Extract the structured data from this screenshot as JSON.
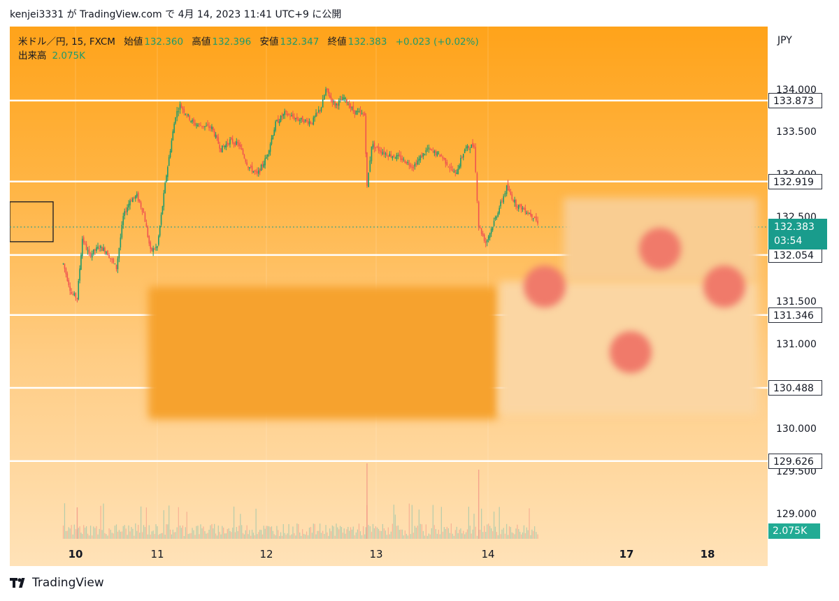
{
  "header": {
    "text": "kenjei3331 が TradingView.com で 4月 14, 2023 11:41 UTC+9 に公開"
  },
  "legend": {
    "symbol": "米ドル／円, 15, FXCM",
    "open_label": "始値",
    "open": "132.360",
    "high_label": "高値",
    "high": "132.396",
    "low_label": "安値",
    "low": "132.347",
    "close_label": "終値",
    "close": "132.383",
    "change": "+0.023 (+0.02%)",
    "volume_label": "出来高",
    "volume": "2.075K"
  },
  "currency": "JPY",
  "price_tag": {
    "price": "132.383",
    "countdown": "03:54"
  },
  "volume_tag": "2.075K",
  "footer": {
    "brand": "TradingView"
  },
  "colors": {
    "up": "#1d9a6c",
    "down": "#ef5350",
    "level_line": "#ffffff",
    "price_tag": "#199c8c"
  },
  "chart_data": {
    "type": "candlestick",
    "symbol": "米ドル／円",
    "interval": "15",
    "ylim": [
      128.8,
      134.35
    ],
    "y_ticks": [
      "129.000",
      "129.500",
      "130.000",
      "131.000",
      "131.500",
      "132.500",
      "133.000",
      "133.500",
      "134.000"
    ],
    "x_ticks": [
      "10",
      "11",
      "12",
      "13",
      "14",
      "17",
      "18"
    ],
    "horizontal_levels": [
      "133.873",
      "132.919",
      "132.054",
      "131.346",
      "130.488",
      "129.626"
    ],
    "current_price": 132.383,
    "close_path": [
      {
        "t": "2023-04-09 21:00",
        "p": 131.95
      },
      {
        "t": "2023-04-09 23:00",
        "p": 131.6
      },
      {
        "t": "2023-04-10 00:30",
        "p": 131.55
      },
      {
        "t": "2023-04-10 02:00",
        "p": 132.25
      },
      {
        "t": "2023-04-10 04:00",
        "p": 132.05
      },
      {
        "t": "2023-04-10 07:00",
        "p": 132.15
      },
      {
        "t": "2023-04-10 09:00",
        "p": 132.1
      },
      {
        "t": "2023-04-10 12:00",
        "p": 131.9
      },
      {
        "t": "2023-04-10 14:00",
        "p": 132.5
      },
      {
        "t": "2023-04-10 16:00",
        "p": 132.7
      },
      {
        "t": "2023-04-10 18:00",
        "p": 132.75
      },
      {
        "t": "2023-04-10 20:00",
        "p": 132.55
      },
      {
        "t": "2023-04-10 22:00",
        "p": 132.1
      },
      {
        "t": "2023-04-11 00:00",
        "p": 132.15
      },
      {
        "t": "2023-04-11 02:00",
        "p": 133.0
      },
      {
        "t": "2023-04-11 04:00",
        "p": 133.7
      },
      {
        "t": "2023-04-11 05:00",
        "p": 133.82
      },
      {
        "t": "2023-04-11 08:00",
        "p": 133.6
      },
      {
        "t": "2023-04-11 12:00",
        "p": 133.55
      },
      {
        "t": "2023-04-11 14:00",
        "p": 133.3
      },
      {
        "t": "2023-04-11 16:00",
        "p": 133.4
      },
      {
        "t": "2023-04-11 18:00",
        "p": 133.35
      },
      {
        "t": "2023-04-11 20:00",
        "p": 133.1
      },
      {
        "t": "2023-04-11 22:00",
        "p": 133.0
      },
      {
        "t": "2023-04-12 00:00",
        "p": 133.2
      },
      {
        "t": "2023-04-12 02:00",
        "p": 133.6
      },
      {
        "t": "2023-04-12 04:00",
        "p": 133.72
      },
      {
        "t": "2023-04-12 07:00",
        "p": 133.65
      },
      {
        "t": "2023-04-12 10:00",
        "p": 133.62
      },
      {
        "t": "2023-04-12 12:00",
        "p": 133.8
      },
      {
        "t": "2023-04-12 13:00",
        "p": 134.0
      },
      {
        "t": "2023-04-12 15:00",
        "p": 133.82
      },
      {
        "t": "2023-04-12 17:00",
        "p": 133.9
      },
      {
        "t": "2023-04-12 19:00",
        "p": 133.75
      },
      {
        "t": "2023-04-12 21:30",
        "p": 133.7
      },
      {
        "t": "2023-04-12 22:00",
        "p": 132.85
      },
      {
        "t": "2023-04-12 23:00",
        "p": 133.35
      },
      {
        "t": "2023-04-13 02:00",
        "p": 133.25
      },
      {
        "t": "2023-04-13 05:00",
        "p": 133.2
      },
      {
        "t": "2023-04-13 08:00",
        "p": 133.1
      },
      {
        "t": "2023-04-13 11:00",
        "p": 133.3
      },
      {
        "t": "2023-04-13 14:00",
        "p": 133.22
      },
      {
        "t": "2023-04-13 17:00",
        "p": 133.0
      },
      {
        "t": "2023-04-13 19:00",
        "p": 133.3
      },
      {
        "t": "2023-04-13 21:00",
        "p": 133.35
      },
      {
        "t": "2023-04-13 22:00",
        "p": 132.4
      },
      {
        "t": "2023-04-13 23:30",
        "p": 132.2
      },
      {
        "t": "2023-04-14 01:00",
        "p": 132.4
      },
      {
        "t": "2023-04-14 03:00",
        "p": 132.7
      },
      {
        "t": "2023-04-14 04:00",
        "p": 132.85
      },
      {
        "t": "2023-04-14 06:00",
        "p": 132.65
      },
      {
        "t": "2023-04-14 08:00",
        "p": 132.58
      },
      {
        "t": "2023-04-14 10:00",
        "p": 132.5
      },
      {
        "t": "2023-04-14 11:00",
        "p": 132.38
      }
    ],
    "volume_spikes": [
      {
        "t": "2023-04-10 00:30",
        "height": 0.25
      },
      {
        "t": "2023-04-12 22:00",
        "height": 0.6
      },
      {
        "t": "2023-04-13 22:00",
        "height": 0.55
      }
    ],
    "grid": true,
    "legend_position": "top-left"
  }
}
